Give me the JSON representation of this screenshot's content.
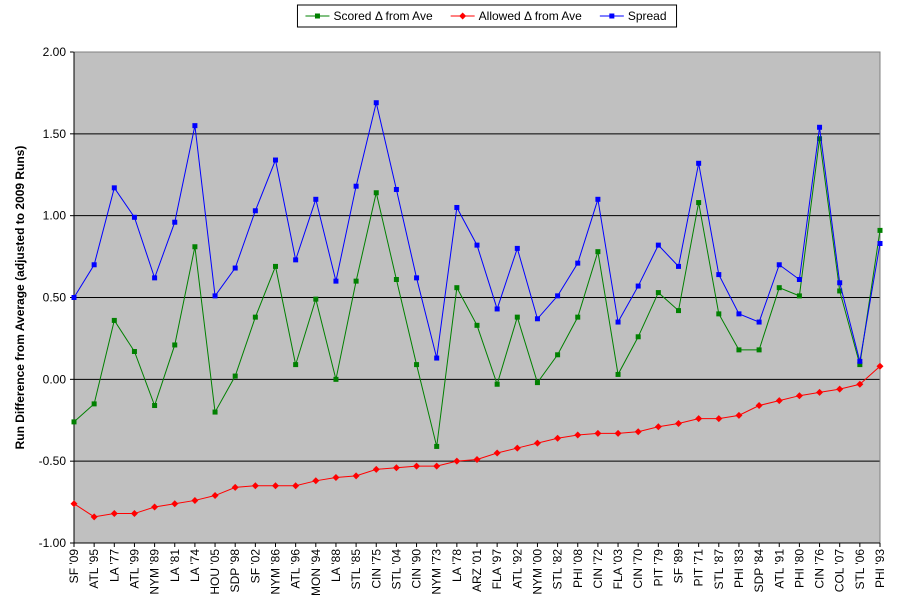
{
  "chart_data": {
    "type": "line",
    "y_label": "Run Difference from Average (adjusted to 2009 Runs)",
    "categories": [
      "SF '09",
      "ATL '95",
      "LA '77",
      "ATL '99",
      "NYM '89",
      "LA '81",
      "LA '74",
      "HOU '05",
      "SDP '98",
      "SF '02",
      "NYM '86",
      "ATL '96",
      "MON '94",
      "LA '88",
      "STL '85",
      "CIN '75",
      "STL '04",
      "CIN '90",
      "NYM '73",
      "LA '78",
      "ARZ '01",
      "FLA '97",
      "ATL '92",
      "NYM '00",
      "STL '82",
      "PHI '08",
      "CIN '72",
      "FLA '03",
      "CIN '70",
      "PIT '79",
      "SF '89",
      "PIT '71",
      "STL '87",
      "PHI '83",
      "SDP '84",
      "ATL '91",
      "PHI '80",
      "CIN '76",
      "COL '07",
      "STL '06",
      "PHI '93"
    ],
    "series": [
      {
        "name": "Scored Δ from Ave",
        "color": "#008000",
        "marker": "square",
        "values": [
          -0.26,
          -0.15,
          0.36,
          0.17,
          -0.16,
          0.21,
          0.81,
          -0.2,
          0.02,
          0.38,
          0.69,
          0.09,
          0.49,
          0.0,
          0.6,
          1.14,
          0.61,
          0.09,
          -0.41,
          0.56,
          0.33,
          -0.03,
          0.38,
          -0.02,
          0.15,
          0.38,
          0.78,
          0.03,
          0.26,
          0.53,
          0.42,
          1.08,
          0.4,
          0.18,
          0.18,
          0.56,
          0.51,
          1.47,
          0.54,
          0.09,
          0.91
        ]
      },
      {
        "name": "Allowed Δ from Ave",
        "color": "#ff0000",
        "marker": "diamond",
        "values": [
          -0.76,
          -0.84,
          -0.82,
          -0.82,
          -0.78,
          -0.76,
          -0.74,
          -0.71,
          -0.66,
          -0.65,
          -0.65,
          -0.65,
          -0.62,
          -0.6,
          -0.59,
          -0.55,
          -0.54,
          -0.53,
          -0.53,
          -0.5,
          -0.49,
          -0.45,
          -0.42,
          -0.39,
          -0.36,
          -0.34,
          -0.33,
          -0.33,
          -0.32,
          -0.29,
          -0.27,
          -0.24,
          -0.24,
          -0.22,
          -0.16,
          -0.13,
          -0.1,
          -0.08,
          -0.06,
          -0.03,
          0.08
        ]
      },
      {
        "name": "Spread",
        "color": "#0000ff",
        "marker": "square",
        "values": [
          0.5,
          0.7,
          1.17,
          0.99,
          0.62,
          0.96,
          1.55,
          0.51,
          0.68,
          1.03,
          1.34,
          0.73,
          1.1,
          0.6,
          1.18,
          1.69,
          1.16,
          0.62,
          0.13,
          1.05,
          0.82,
          0.43,
          0.8,
          0.37,
          0.51,
          0.71,
          1.1,
          0.35,
          0.57,
          0.82,
          0.69,
          1.32,
          0.64,
          0.4,
          0.35,
          0.7,
          0.61,
          1.54,
          0.59,
          0.11,
          0.83
        ]
      }
    ],
    "ylim": [
      -1.0,
      2.0
    ],
    "yticks": [
      {
        "value": -1.0,
        "label": "-1.00"
      },
      {
        "value": -0.5,
        "label": "-0.50"
      },
      {
        "value": 0,
        "label": "0.00"
      },
      {
        "value": 0.5,
        "label": "0.50"
      },
      {
        "value": 1.0,
        "label": "1.00"
      },
      {
        "value": 1.5,
        "label": "1.50"
      },
      {
        "value": 2.0,
        "label": "2.00"
      }
    ],
    "grid": true,
    "legend": "top",
    "background": "#c0c0c0"
  }
}
